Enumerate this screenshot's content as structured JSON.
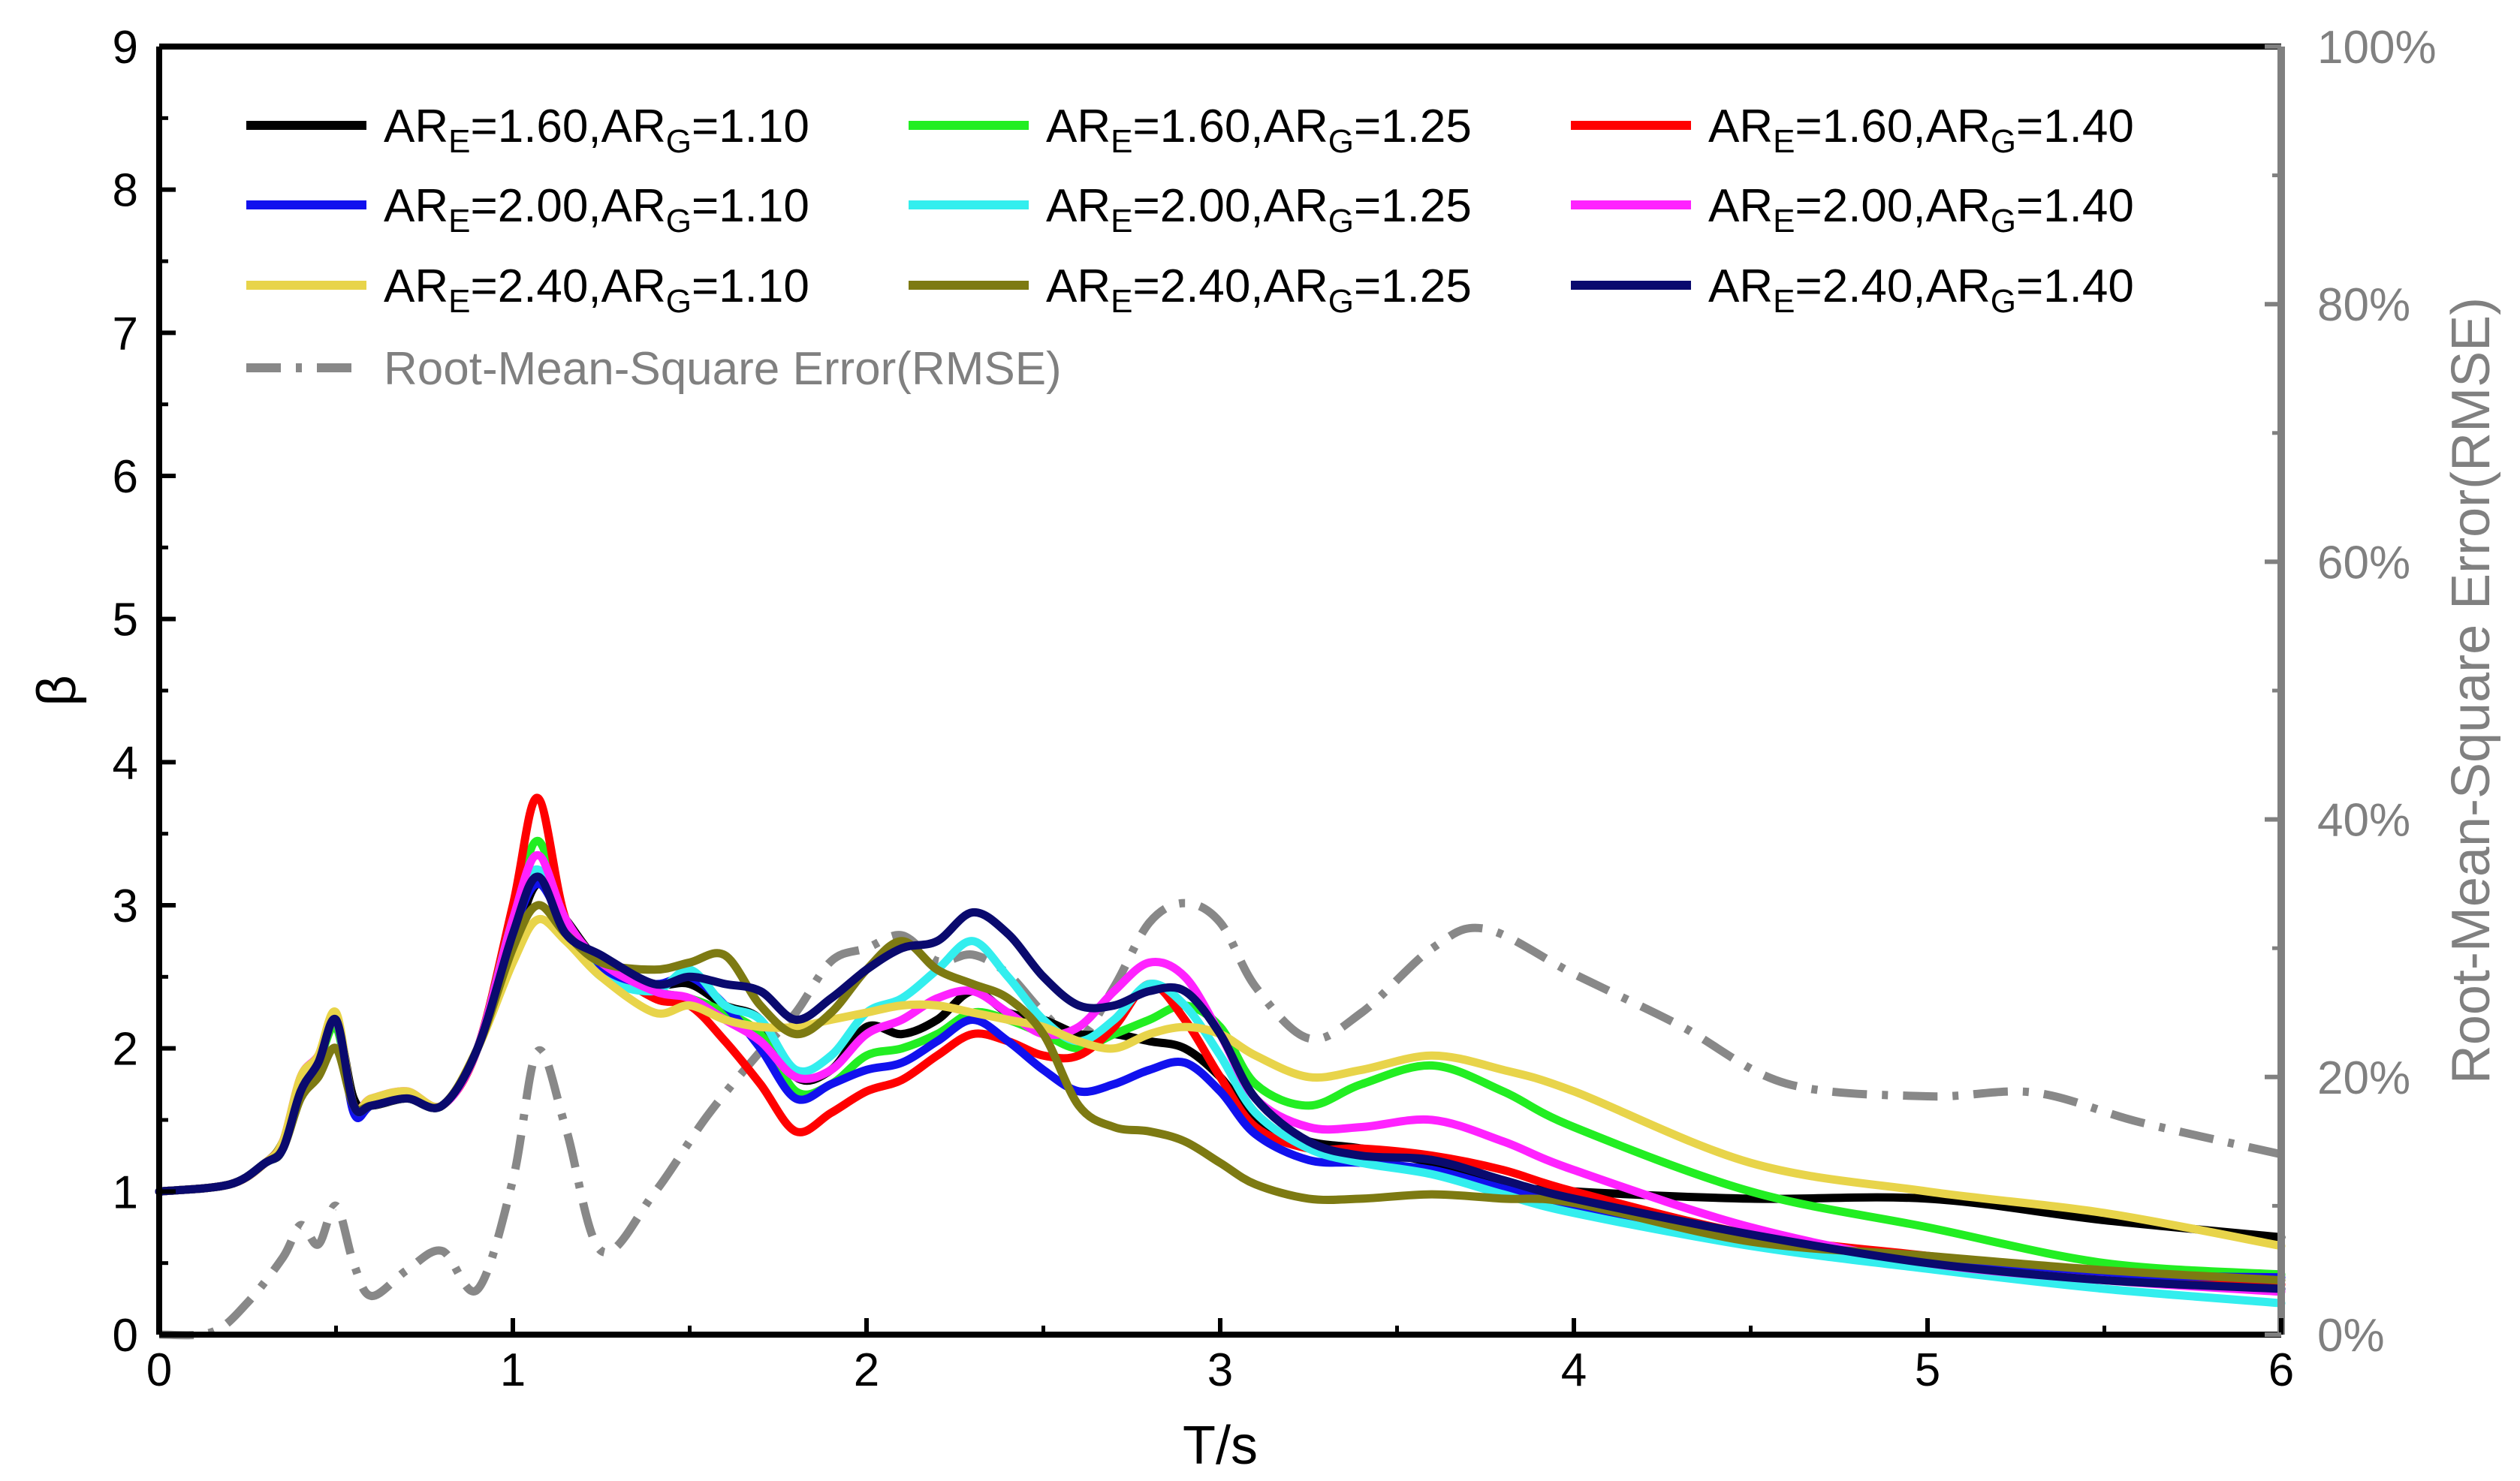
{
  "chart_data": {
    "type": "line",
    "xlabel": "T/s",
    "ylabel": "β",
    "y2label": "Root-Mean-Square Error(RMSE)",
    "xlim": [
      0,
      6
    ],
    "ylim": [
      0,
      9
    ],
    "y2lim": [
      0,
      100
    ],
    "xticks": [
      "0",
      "1",
      "2",
      "3",
      "4",
      "5",
      "6"
    ],
    "yticks": [
      "0",
      "1",
      "2",
      "3",
      "4",
      "5",
      "6",
      "7",
      "8",
      "9"
    ],
    "y2ticks": [
      "0%",
      "20%",
      "40%",
      "60%",
      "80%",
      "100%"
    ],
    "legend_position": "top",
    "x": [
      0,
      0.2,
      0.3,
      0.35,
      0.4,
      0.45,
      0.5,
      0.55,
      0.6,
      0.7,
      0.8,
      0.9,
      1.0,
      1.07,
      1.15,
      1.25,
      1.4,
      1.5,
      1.6,
      1.7,
      1.8,
      1.9,
      2.0,
      2.1,
      2.2,
      2.3,
      2.4,
      2.5,
      2.6,
      2.7,
      2.8,
      2.9,
      3.0,
      3.1,
      3.25,
      3.4,
      3.6,
      3.8,
      4.0,
      4.5,
      5.0,
      5.5,
      6.0
    ],
    "series": [
      {
        "name": "AR_E=1.60,AR_G=1.10",
        "label_main": "AR",
        "sub1": "E",
        "mid": "=1.60,AR",
        "sub2": "G",
        "tail": "=1.10",
        "color": "#000000",
        "values": [
          1.0,
          1.05,
          1.2,
          1.3,
          1.75,
          1.9,
          2.2,
          1.65,
          1.6,
          1.65,
          1.6,
          2.0,
          2.7,
          3.15,
          2.9,
          2.6,
          2.45,
          2.45,
          2.3,
          2.2,
          1.8,
          1.85,
          2.15,
          2.1,
          2.2,
          2.4,
          2.25,
          2.2,
          2.1,
          2.1,
          2.05,
          2.0,
          1.8,
          1.5,
          1.35,
          1.3,
          1.2,
          1.05,
          1.0,
          0.95,
          0.95,
          0.8,
          0.68
        ]
      },
      {
        "name": "AR_E=1.60,AR_G=1.25",
        "label_main": "AR",
        "sub1": "E",
        "mid": "=1.60,AR",
        "sub2": "G",
        "tail": "=1.25",
        "color": "#22ee22",
        "values": [
          1.0,
          1.05,
          1.2,
          1.35,
          1.7,
          1.9,
          2.15,
          1.6,
          1.6,
          1.65,
          1.6,
          2.0,
          2.9,
          3.45,
          2.9,
          2.55,
          2.4,
          2.35,
          2.25,
          2.1,
          1.7,
          1.75,
          1.95,
          2.0,
          2.1,
          2.25,
          2.2,
          2.1,
          2.0,
          2.1,
          2.2,
          2.3,
          2.15,
          1.75,
          1.6,
          1.75,
          1.88,
          1.7,
          1.45,
          1.0,
          0.75,
          0.5,
          0.42
        ]
      },
      {
        "name": "AR_E=1.60,AR_G=1.40",
        "label_main": "AR",
        "sub1": "E",
        "mid": "=1.60,AR",
        "sub2": "G",
        "tail": "=1.40",
        "color": "#ff0000",
        "values": [
          1.0,
          1.05,
          1.2,
          1.35,
          1.75,
          1.9,
          2.2,
          1.6,
          1.6,
          1.65,
          1.6,
          2.0,
          3.0,
          3.75,
          2.9,
          2.6,
          2.35,
          2.3,
          2.05,
          1.75,
          1.42,
          1.55,
          1.7,
          1.78,
          1.95,
          2.1,
          2.05,
          1.95,
          1.95,
          2.15,
          2.45,
          2.2,
          1.8,
          1.45,
          1.3,
          1.3,
          1.25,
          1.15,
          1.0,
          0.7,
          0.55,
          0.42,
          0.35
        ]
      },
      {
        "name": "AR_E=2.00,AR_G=1.10",
        "label_main": "AR",
        "sub1": "E",
        "mid": "=2.00,AR",
        "sub2": "G",
        "tail": "=1.10",
        "color": "#1111ee",
        "values": [
          1.0,
          1.05,
          1.2,
          1.3,
          1.7,
          1.9,
          2.2,
          1.55,
          1.6,
          1.65,
          1.6,
          2.0,
          2.8,
          3.15,
          2.85,
          2.55,
          2.45,
          2.5,
          2.3,
          2.0,
          1.65,
          1.75,
          1.85,
          1.9,
          2.05,
          2.2,
          2.05,
          1.85,
          1.7,
          1.75,
          1.85,
          1.9,
          1.7,
          1.4,
          1.22,
          1.2,
          1.15,
          1.02,
          0.9,
          0.65,
          0.5,
          0.42,
          0.4
        ]
      },
      {
        "name": "AR_E=2.00,AR_G=1.25",
        "label_main": "AR",
        "sub1": "E",
        "mid": "=2.00,AR",
        "sub2": "G",
        "tail": "=1.25",
        "color": "#33eeee",
        "values": [
          1.0,
          1.05,
          1.2,
          1.3,
          1.7,
          1.9,
          2.2,
          1.6,
          1.6,
          1.65,
          1.6,
          2.0,
          2.9,
          3.25,
          2.85,
          2.5,
          2.4,
          2.55,
          2.3,
          2.2,
          1.85,
          1.95,
          2.25,
          2.35,
          2.55,
          2.75,
          2.5,
          2.2,
          2.05,
          2.2,
          2.45,
          2.3,
          1.95,
          1.55,
          1.3,
          1.2,
          1.12,
          0.98,
          0.85,
          0.62,
          0.46,
          0.32,
          0.22
        ]
      },
      {
        "name": "AR_E=2.00,AR_G=1.40",
        "label_main": "AR",
        "sub1": "E",
        "mid": "=2.00,AR",
        "sub2": "G",
        "tail": "=1.40",
        "color": "#ff22ff",
        "values": [
          1.0,
          1.05,
          1.2,
          1.35,
          1.8,
          1.95,
          2.2,
          1.6,
          1.65,
          1.7,
          1.6,
          2.0,
          2.9,
          3.35,
          2.9,
          2.6,
          2.4,
          2.35,
          2.2,
          2.05,
          1.8,
          1.85,
          2.1,
          2.2,
          2.35,
          2.4,
          2.25,
          2.1,
          2.15,
          2.4,
          2.6,
          2.5,
          2.1,
          1.65,
          1.45,
          1.45,
          1.5,
          1.35,
          1.15,
          0.75,
          0.5,
          0.38,
          0.3
        ]
      },
      {
        "name": "AR_E=2.40,AR_G=1.10",
        "label_main": "AR",
        "sub1": "E",
        "mid": "=2.40,AR",
        "sub2": "G",
        "tail": "=1.10",
        "color": "#e8d44a",
        "values": [
          1.0,
          1.05,
          1.2,
          1.35,
          1.8,
          1.95,
          2.25,
          1.6,
          1.65,
          1.7,
          1.6,
          2.0,
          2.6,
          2.9,
          2.75,
          2.5,
          2.25,
          2.3,
          2.2,
          2.15,
          2.15,
          2.2,
          2.25,
          2.3,
          2.3,
          2.25,
          2.2,
          2.15,
          2.05,
          2.0,
          2.1,
          2.15,
          2.1,
          1.95,
          1.8,
          1.85,
          1.95,
          1.85,
          1.7,
          1.2,
          1.0,
          0.85,
          0.62
        ]
      },
      {
        "name": "AR_E=2.40,AR_G=1.25",
        "label_main": "AR",
        "sub1": "E",
        "mid": "=2.40,AR",
        "sub2": "G",
        "tail": "=1.25",
        "color": "#7d7a12",
        "values": [
          1.0,
          1.05,
          1.2,
          1.3,
          1.65,
          1.8,
          2.0,
          1.6,
          1.6,
          1.65,
          1.6,
          2.0,
          2.7,
          3.0,
          2.8,
          2.6,
          2.55,
          2.6,
          2.65,
          2.3,
          2.1,
          2.25,
          2.55,
          2.75,
          2.55,
          2.45,
          2.35,
          2.1,
          1.6,
          1.45,
          1.42,
          1.35,
          1.2,
          1.05,
          0.95,
          0.95,
          0.98,
          0.95,
          0.92,
          0.65,
          0.55,
          0.45,
          0.38
        ]
      },
      {
        "name": "AR_E=2.40,AR_G=1.40",
        "label_main": "AR",
        "sub1": "E",
        "mid": "=2.40,AR",
        "sub2": "G",
        "tail": "=1.40",
        "color": "#0a0a6e",
        "values": [
          1.0,
          1.05,
          1.2,
          1.3,
          1.7,
          1.9,
          2.2,
          1.6,
          1.6,
          1.65,
          1.6,
          2.0,
          2.8,
          3.2,
          2.8,
          2.65,
          2.45,
          2.5,
          2.45,
          2.4,
          2.2,
          2.35,
          2.55,
          2.7,
          2.75,
          2.95,
          2.8,
          2.5,
          2.3,
          2.3,
          2.4,
          2.4,
          2.1,
          1.65,
          1.35,
          1.25,
          1.22,
          1.08,
          0.95,
          0.7,
          0.5,
          0.38,
          0.32
        ]
      }
    ],
    "rmse": {
      "name": "Root-Mean-Square Error(RMSE)",
      "color": "#888888",
      "axis": "right",
      "x": [
        0,
        0.15,
        0.25,
        0.35,
        0.4,
        0.45,
        0.5,
        0.55,
        0.6,
        0.7,
        0.8,
        0.9,
        1.0,
        1.07,
        1.15,
        1.25,
        1.4,
        1.55,
        1.7,
        1.8,
        1.9,
        2.0,
        2.1,
        2.2,
        2.3,
        2.4,
        2.5,
        2.6,
        2.7,
        2.8,
        2.9,
        3.0,
        3.1,
        3.25,
        3.4,
        3.6,
        3.75,
        4.0,
        4.3,
        4.6,
        5.0,
        5.3,
        5.6,
        6.0
      ],
      "values": [
        0,
        0.2,
        2.5,
        6.0,
        8.5,
        7.0,
        10.0,
        5.5,
        3.0,
        5.0,
        6.5,
        3.5,
        12.0,
        22.0,
        16.0,
        6.5,
        11.0,
        17.0,
        22.0,
        25.0,
        29.0,
        30.0,
        31.0,
        29.0,
        29.5,
        28.0,
        25.0,
        23.0,
        27.0,
        32.0,
        33.5,
        32.0,
        27.0,
        23.0,
        25.0,
        30.0,
        31.5,
        28.0,
        24.0,
        19.5,
        18.5,
        18.8,
        16.5,
        14.0
      ]
    }
  }
}
